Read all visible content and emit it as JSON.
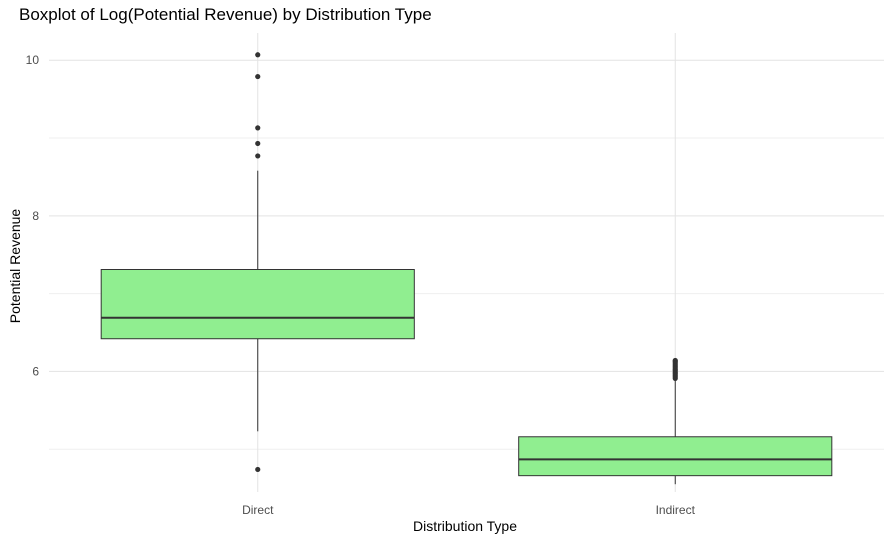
{
  "chart_data": {
    "type": "boxplot",
    "title": "Boxplot of Log(Potential Revenue) by Distribution Type",
    "xlabel": "Distribution Type",
    "ylabel": "Potential Revenue",
    "categories": [
      "Direct",
      "Indirect"
    ],
    "ylim": [
      4.45,
      10.35
    ],
    "y_ticks": [
      6,
      8,
      10
    ],
    "grid": true,
    "box_color": "#90EE90",
    "line_color": "#333333",
    "boxes": [
      {
        "name": "Direct",
        "whisker_low": 5.23,
        "q1": 6.42,
        "median": 6.69,
        "q3": 7.31,
        "whisker_high": 8.58,
        "outliers": [
          10.07,
          9.79,
          9.13,
          8.93,
          8.77,
          4.74
        ]
      },
      {
        "name": "Indirect",
        "whisker_low": 4.55,
        "q1": 4.66,
        "median": 4.87,
        "q3": 5.16,
        "whisker_high": 5.89,
        "outliers": [
          5.91,
          5.93,
          5.95,
          5.97,
          5.99,
          6.01,
          6.03,
          6.05,
          6.07,
          6.09,
          6.11,
          6.13,
          6.14
        ]
      }
    ]
  }
}
